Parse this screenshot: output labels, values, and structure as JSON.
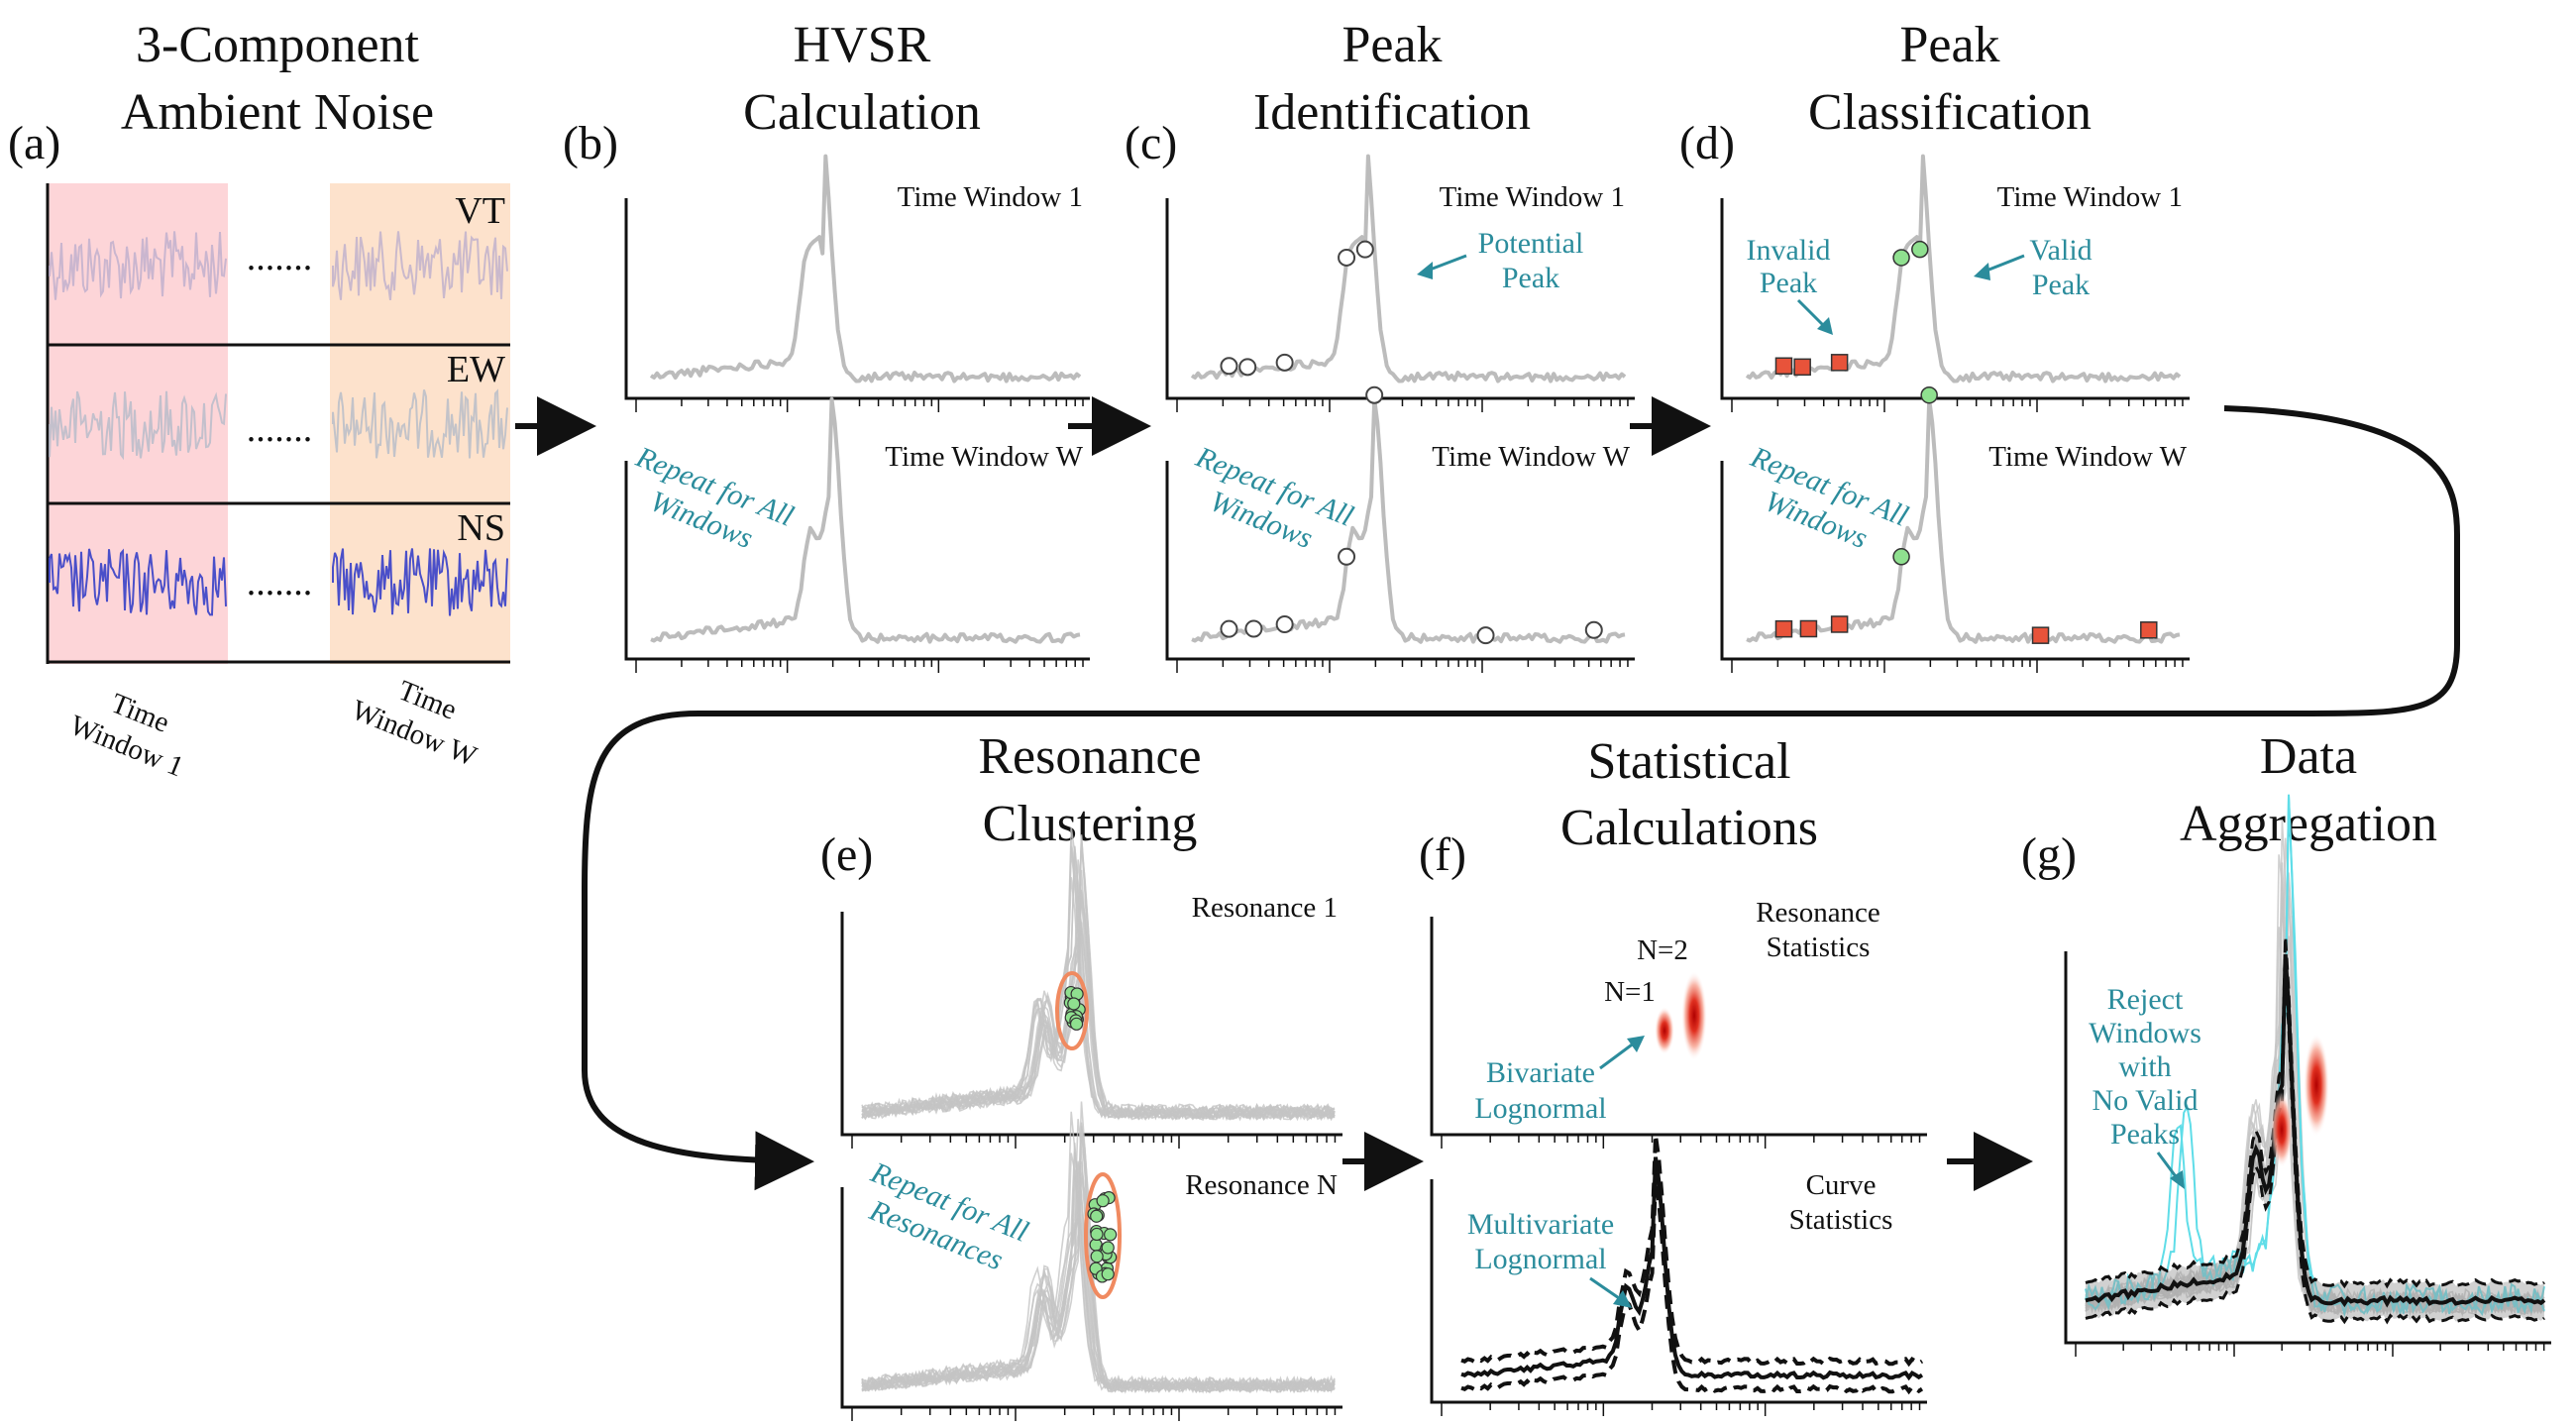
{
  "panels": {
    "a": {
      "letter": "(a)",
      "title_lines": [
        "3-Component",
        "Ambient Noise"
      ],
      "components": [
        "VT",
        "EW",
        "NS"
      ],
      "dots": ".......",
      "window_first": [
        "Time",
        "Window 1"
      ],
      "window_last": [
        "Time",
        "Window W"
      ]
    },
    "b": {
      "letter": "(b)",
      "title_lines": [
        "HVSR",
        "Calculation"
      ],
      "win_top": "Time Window 1",
      "win_bottom": "Time Window W",
      "repeat_lines": [
        "Repeat for All",
        "Windows"
      ]
    },
    "c": {
      "letter": "(c)",
      "title_lines": [
        "Peak",
        "Identification"
      ],
      "win_top": "Time Window 1",
      "win_bottom": "Time Window W",
      "annot_lines": [
        "Potential",
        "Peak"
      ],
      "repeat_lines": [
        "Repeat for All",
        "Windows"
      ]
    },
    "d": {
      "letter": "(d)",
      "title_lines": [
        "Peak",
        "Classification"
      ],
      "win_top": "Time Window 1",
      "win_bottom": "Time Window W",
      "invalid_lines": [
        "Invalid",
        "Peak"
      ],
      "valid_lines": [
        "Valid",
        "Peak"
      ],
      "repeat_lines": [
        "Repeat for All",
        "Windows"
      ]
    },
    "e": {
      "letter": "(e)",
      "title_lines": [
        "Resonance",
        "Clustering"
      ],
      "res_top": "Resonance 1",
      "res_bottom": "Resonance N",
      "repeat_lines": [
        "Repeat for All",
        "Resonances"
      ]
    },
    "f": {
      "letter": "(f)",
      "title_lines": [
        "Statistical",
        "Calculations"
      ],
      "res_stats_lines": [
        "Resonance",
        "Statistics"
      ],
      "curve_stats_lines": [
        "Curve",
        "Statistics"
      ],
      "n2": "N=2",
      "n1": "N=1",
      "bivariate_lines": [
        "Bivariate",
        "Lognormal"
      ],
      "multivariate_lines": [
        "Multivariate",
        "Lognormal"
      ]
    },
    "g": {
      "letter": "(g)",
      "title_lines": [
        "Data",
        "Aggregation"
      ],
      "reject_lines": [
        "Reject",
        "Windows",
        "with",
        "No Valid",
        "Peaks"
      ]
    }
  },
  "colors": {
    "teal": "#2b8c9c",
    "gray_curve": "#bcbcbc",
    "valid_peak": "#8fe08f",
    "invalid_peak": "#e8533a",
    "window_pink": "#fdd5d8",
    "window_peach": "#fde2cc",
    "trace_vt": "#b3a8cc",
    "trace_ew": "#a9b6c7",
    "trace_ns": "#4a4fc9",
    "cyan_rejected": "#5fdde8"
  }
}
